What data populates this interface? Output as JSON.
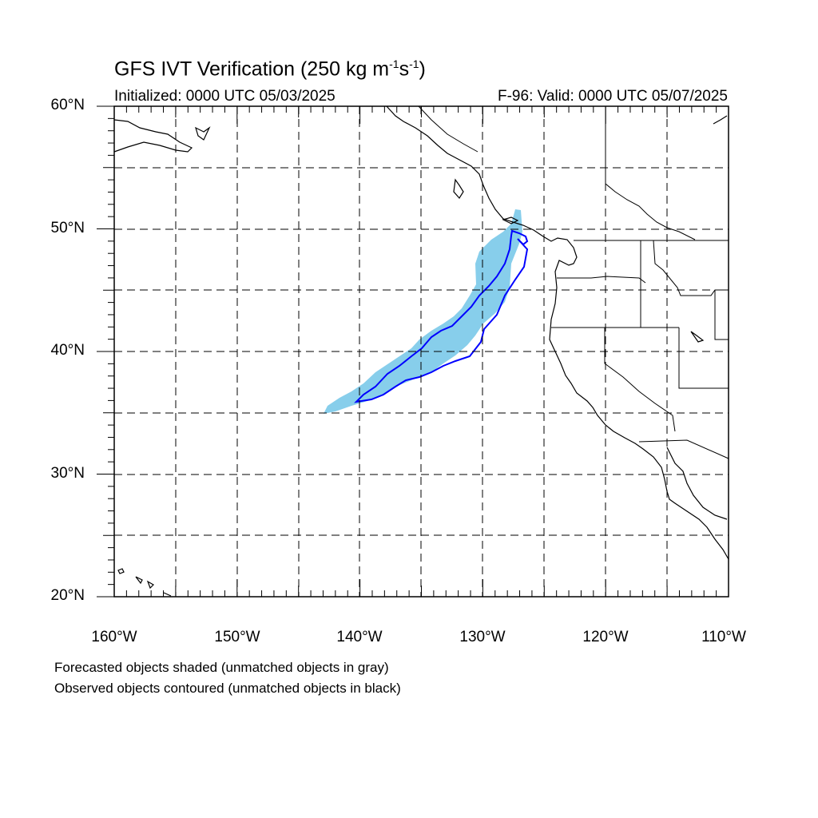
{
  "title": {
    "prefix": "GFS IVT Verification (250 kg m",
    "sup1": "-1",
    "mid": "s",
    "sup2": "-1",
    "suffix": ")"
  },
  "initialized": "Initialized: 0000 UTC 05/03/2025",
  "valid": "F-96: Valid: 0000 UTC 05/07/2025",
  "y_tick_labels": [
    "60°N",
    "50°N",
    "40°N",
    "30°N",
    "20°N"
  ],
  "x_tick_labels": [
    "160°W",
    "150°W",
    "140°W",
    "130°W",
    "120°W",
    "110°W"
  ],
  "captions": [
    "Forecasted objects shaded (unmatched objects in gray)",
    "Observed objects contoured (unmatched objects in black)"
  ],
  "colors": {
    "forecast_fill": "#87ceeb",
    "observed_contour": "#0000ff",
    "coastline": "#000000",
    "grid": "#000000"
  },
  "map_extent": {
    "lon": [
      -160,
      -110
    ],
    "lat": [
      20,
      60
    ]
  }
}
